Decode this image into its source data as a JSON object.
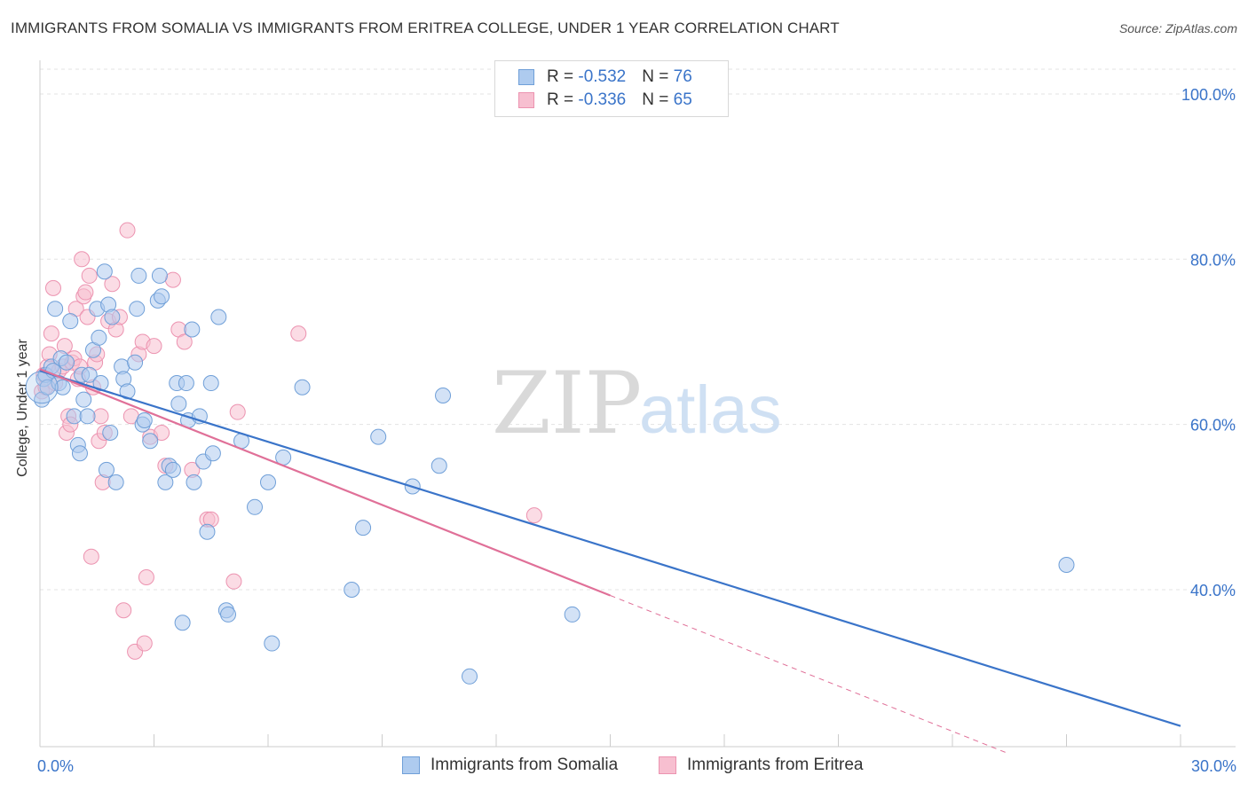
{
  "title": "IMMIGRANTS FROM SOMALIA VS IMMIGRANTS FROM ERITREA COLLEGE, UNDER 1 YEAR CORRELATION CHART",
  "source": "Source: ZipAtlas.com",
  "watermark": {
    "zip": "ZIP",
    "atlas": "atlas"
  },
  "legend": {
    "rows": [
      {
        "r_label": "R = ",
        "r_value": "-0.532",
        "n_label": "N = ",
        "n_value": "76"
      },
      {
        "r_label": "R = ",
        "r_value": "-0.336",
        "n_label": "N = ",
        "n_value": "65"
      }
    ]
  },
  "bottom_legend": [
    "Immigrants from Somalia",
    "Immigrants from Eritrea"
  ],
  "colors": {
    "somalia_fill": "#aecbef",
    "somalia_stroke": "#6f9fd8",
    "somalia_line": "#3a74c9",
    "eritrea_fill": "#f7bfd0",
    "eritrea_stroke": "#ec93b0",
    "eritrea_line": "#e07098",
    "grid": "#e3e3e3",
    "axis_text": "#3a74c9"
  },
  "chart_data": {
    "type": "scatter",
    "title": "IMMIGRANTS FROM SOMALIA VS IMMIGRANTS FROM ERITREA COLLEGE, UNDER 1 YEAR CORRELATION CHART",
    "xlabel": "",
    "ylabel": "College, Under 1 year",
    "xlim": [
      0,
      30
    ],
    "ylim": [
      21,
      103
    ],
    "x_tick_labels": [
      "0.0%",
      "30.0%"
    ],
    "y_ticks": [
      40,
      60,
      80,
      100
    ],
    "y_tick_labels": [
      "40.0%",
      "60.0%",
      "80.0%",
      "100.0%"
    ],
    "series": [
      {
        "name": "Immigrants from Somalia",
        "r": -0.532,
        "n": 76,
        "trend": {
          "x0": 0,
          "y0": 66.5,
          "x1": 30,
          "y1": 23.5,
          "dashed_from": null
        },
        "points": [
          [
            0.05,
            63
          ],
          [
            0.1,
            65.5
          ],
          [
            0.15,
            66
          ],
          [
            0.2,
            64.5
          ],
          [
            0.3,
            67
          ],
          [
            0.35,
            66.5
          ],
          [
            0.4,
            74
          ],
          [
            0.5,
            65
          ],
          [
            0.55,
            68
          ],
          [
            0.6,
            64.5
          ],
          [
            0.7,
            67.5
          ],
          [
            0.8,
            72.5
          ],
          [
            0.9,
            61
          ],
          [
            1.0,
            57.5
          ],
          [
            1.05,
            56.5
          ],
          [
            1.1,
            66
          ],
          [
            1.15,
            63
          ],
          [
            1.25,
            61
          ],
          [
            1.3,
            66
          ],
          [
            1.4,
            69
          ],
          [
            1.5,
            74
          ],
          [
            1.55,
            70.5
          ],
          [
            1.6,
            65
          ],
          [
            1.7,
            78.5
          ],
          [
            1.75,
            54.5
          ],
          [
            1.8,
            74.5
          ],
          [
            1.85,
            59
          ],
          [
            1.9,
            73
          ],
          [
            2.0,
            53
          ],
          [
            2.15,
            67
          ],
          [
            2.2,
            65.5
          ],
          [
            2.3,
            64
          ],
          [
            2.5,
            67.5
          ],
          [
            2.55,
            74
          ],
          [
            2.6,
            78
          ],
          [
            2.7,
            60
          ],
          [
            2.75,
            60.5
          ],
          [
            2.9,
            58
          ],
          [
            3.1,
            75
          ],
          [
            3.15,
            78
          ],
          [
            3.2,
            75.5
          ],
          [
            3.3,
            53
          ],
          [
            3.4,
            55
          ],
          [
            3.5,
            54.5
          ],
          [
            3.6,
            65
          ],
          [
            3.65,
            62.5
          ],
          [
            3.75,
            36
          ],
          [
            3.85,
            65
          ],
          [
            3.9,
            60.5
          ],
          [
            4.0,
            71.5
          ],
          [
            4.05,
            53
          ],
          [
            4.2,
            61
          ],
          [
            4.3,
            55.5
          ],
          [
            4.4,
            47
          ],
          [
            4.5,
            65
          ],
          [
            4.55,
            56.5
          ],
          [
            4.7,
            73
          ],
          [
            4.9,
            37.5
          ],
          [
            4.95,
            37
          ],
          [
            5.3,
            58
          ],
          [
            5.65,
            50
          ],
          [
            6.0,
            53
          ],
          [
            6.1,
            33.5
          ],
          [
            6.4,
            56
          ],
          [
            6.9,
            64.5
          ],
          [
            8.2,
            40
          ],
          [
            8.5,
            47.5
          ],
          [
            8.9,
            58.5
          ],
          [
            9.8,
            52.5
          ],
          [
            10.5,
            55
          ],
          [
            10.6,
            63.5
          ],
          [
            11.3,
            29.5
          ],
          [
            14,
            37
          ],
          [
            27,
            43
          ]
        ]
      },
      {
        "name": "Immigrants from Eritrea",
        "r": -0.336,
        "n": 65,
        "trend": {
          "x0": 0,
          "y0": 66.7,
          "x1": 15,
          "y1": 39.3,
          "dashed_to_x": 25.4,
          "dashed_to_y": 20.3
        },
        "points": [
          [
            0.05,
            64
          ],
          [
            0.1,
            66
          ],
          [
            0.15,
            64.5
          ],
          [
            0.2,
            67
          ],
          [
            0.25,
            68.5
          ],
          [
            0.3,
            71
          ],
          [
            0.35,
            76.5
          ],
          [
            0.4,
            65
          ],
          [
            0.5,
            66.5
          ],
          [
            0.6,
            67
          ],
          [
            0.65,
            69.5
          ],
          [
            0.7,
            59
          ],
          [
            0.75,
            61
          ],
          [
            0.8,
            60
          ],
          [
            0.85,
            67.5
          ],
          [
            0.9,
            68
          ],
          [
            0.95,
            74
          ],
          [
            1.0,
            65.5
          ],
          [
            1.05,
            67
          ],
          [
            1.1,
            80
          ],
          [
            1.15,
            75.5
          ],
          [
            1.2,
            76
          ],
          [
            1.25,
            73
          ],
          [
            1.3,
            78
          ],
          [
            1.35,
            44
          ],
          [
            1.4,
            64.5
          ],
          [
            1.45,
            67.5
          ],
          [
            1.5,
            68.5
          ],
          [
            1.55,
            58
          ],
          [
            1.6,
            61
          ],
          [
            1.65,
            53
          ],
          [
            1.7,
            59
          ],
          [
            1.8,
            72.5
          ],
          [
            1.9,
            77
          ],
          [
            2.0,
            71.5
          ],
          [
            2.1,
            73
          ],
          [
            2.2,
            37.5
          ],
          [
            2.3,
            83.5
          ],
          [
            2.4,
            61
          ],
          [
            2.5,
            32.5
          ],
          [
            2.6,
            68.5
          ],
          [
            2.7,
            70
          ],
          [
            2.75,
            33.5
          ],
          [
            2.8,
            41.5
          ],
          [
            2.9,
            58.5
          ],
          [
            3.0,
            69.5
          ],
          [
            3.2,
            59
          ],
          [
            3.3,
            55
          ],
          [
            3.5,
            77.5
          ],
          [
            3.65,
            71.5
          ],
          [
            3.8,
            70
          ],
          [
            4.0,
            54.5
          ],
          [
            4.4,
            48.5
          ],
          [
            4.5,
            48.5
          ],
          [
            5.1,
            41
          ],
          [
            5.2,
            61.5
          ],
          [
            6.8,
            71
          ],
          [
            13,
            49
          ]
        ]
      }
    ]
  }
}
